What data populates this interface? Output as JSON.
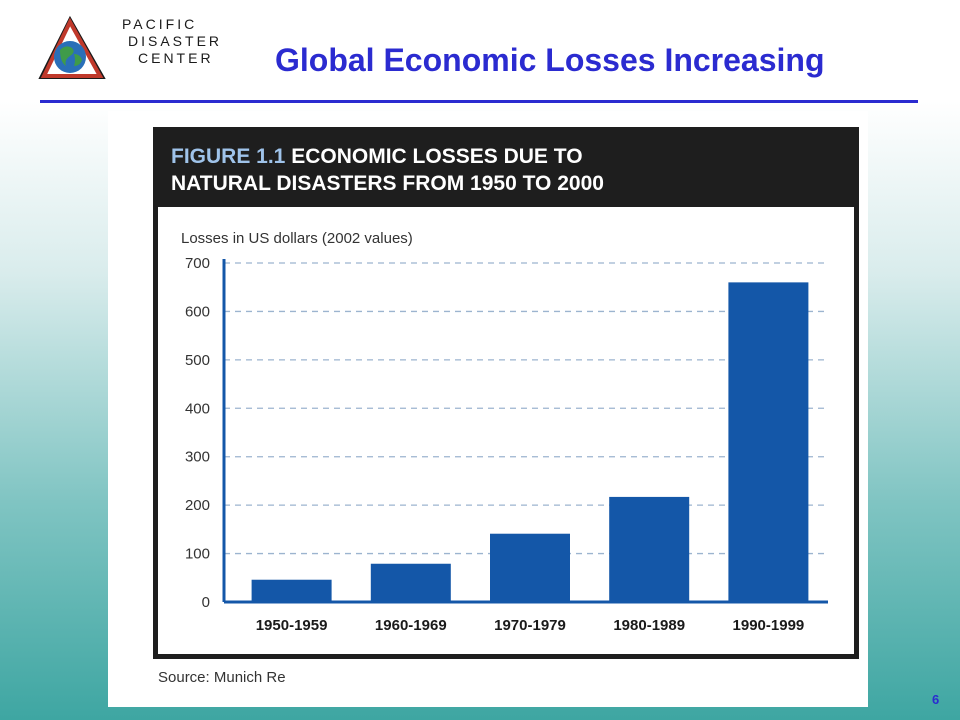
{
  "logo": {
    "line1": "PACIFIC",
    "line2": "DISASTER",
    "line3": "CENTER"
  },
  "slide": {
    "title": "Global Economic Losses Increasing",
    "page_number": "6"
  },
  "figure": {
    "caption_number": "FIGURE 1.1",
    "caption_line1": "ECONOMIC LOSSES DUE TO",
    "caption_line2": "NATURAL DISASTERS FROM 1950 TO 2000",
    "source": "Source: Munich Re"
  },
  "colors": {
    "title": "#2b2bd0",
    "bar": "#1457a8",
    "axis": "#1457a8",
    "grid": "#9cb4cf",
    "figure_frame": "#1e1e1e"
  },
  "chart_data": {
    "type": "bar",
    "title": "ECONOMIC LOSSES DUE TO NATURAL DISASTERS FROM 1950 TO 2000",
    "ylabel": "Losses in US dollars (2002 values)",
    "xlabel": "",
    "categories": [
      "1950-1959",
      "1960-1969",
      "1970-1979",
      "1980-1989",
      "1990-1999"
    ],
    "values": [
      46,
      79,
      141,
      217,
      660
    ],
    "ylim": [
      0,
      700
    ],
    "yticks": [
      0,
      100,
      200,
      300,
      400,
      500,
      600,
      700
    ],
    "grid": true,
    "grid_style": "dashed",
    "legend": "none"
  }
}
